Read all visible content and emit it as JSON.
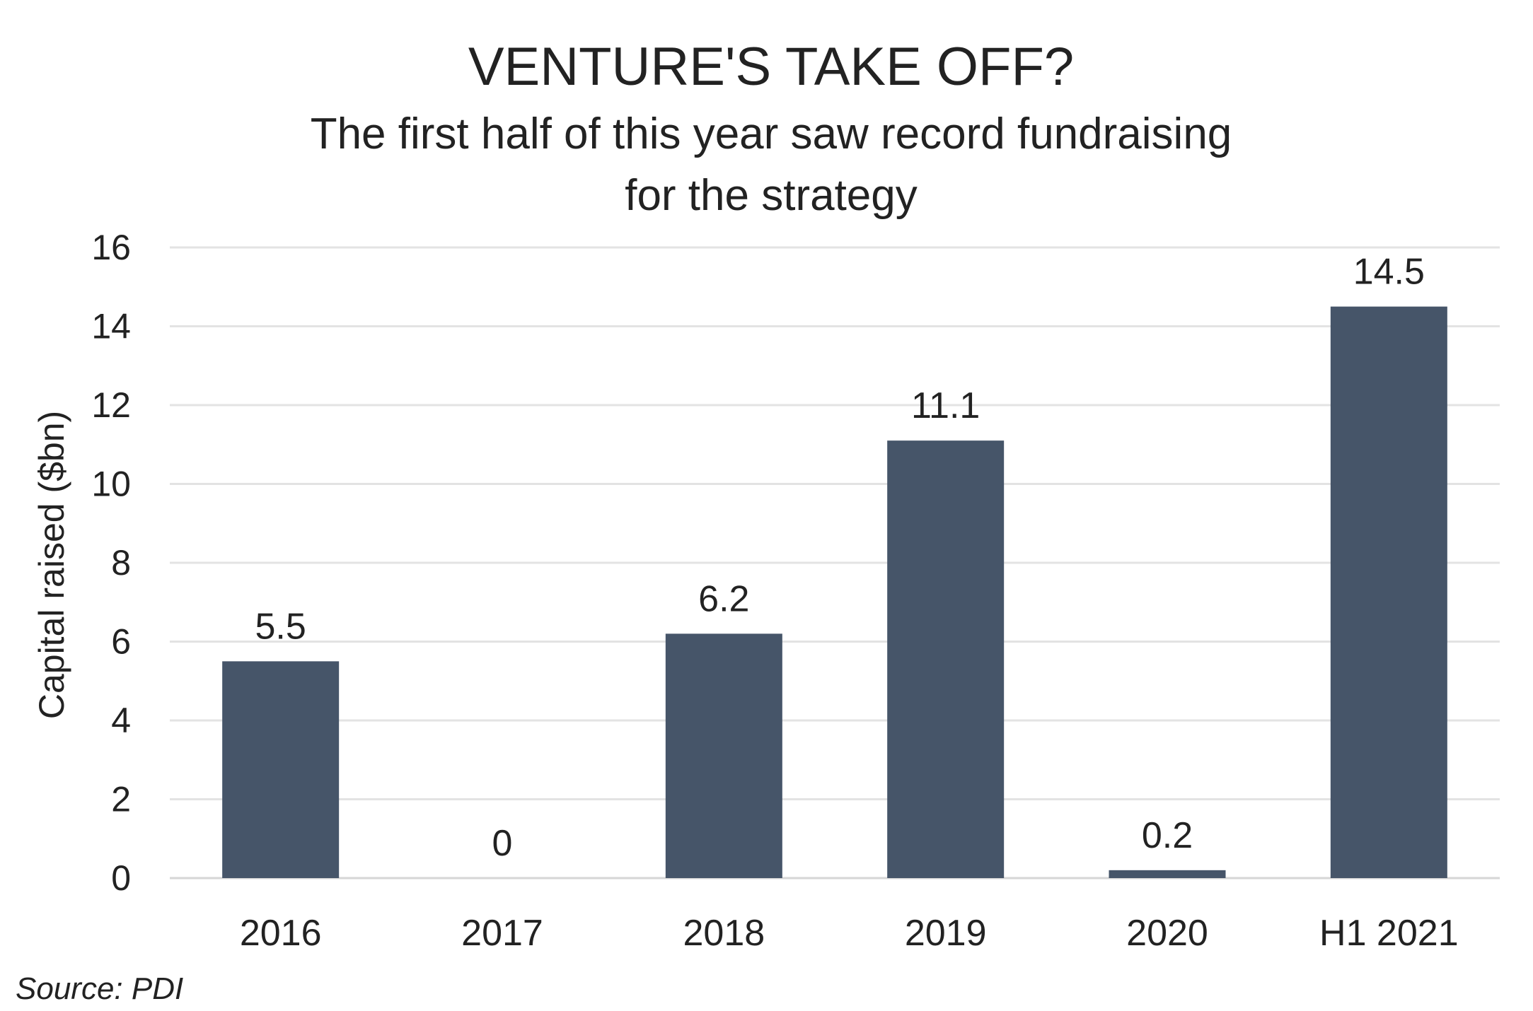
{
  "chart_data": {
    "type": "bar",
    "title": "VENTURE'S TAKE OFF?",
    "subtitle_lines": [
      "The first half of this year saw record fundraising",
      "for the strategy"
    ],
    "xlabel": "",
    "ylabel": "Capital raised ($bn)",
    "categories": [
      "2016",
      "2017",
      "2018",
      "2019",
      "2020",
      "H1 2021"
    ],
    "values": [
      5.5,
      0,
      6.2,
      11.1,
      0.2,
      14.5
    ],
    "data_labels": [
      "5.5",
      "0",
      "6.2",
      "11.1",
      "0.2",
      "14.5"
    ],
    "ylim": [
      0,
      16
    ],
    "yticks": [
      0,
      2,
      4,
      6,
      8,
      10,
      12,
      14,
      16
    ],
    "grid": true,
    "legend": "none",
    "bar_color": "#465569",
    "source": "Source: PDI"
  }
}
